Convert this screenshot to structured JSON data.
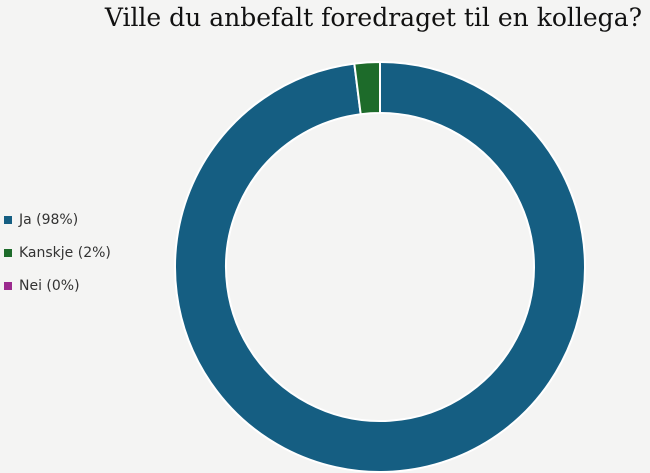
{
  "chart_data": {
    "type": "donut",
    "title": "Ville du anbefalt foredraget til en kollega?",
    "categories": [
      "Ja (98%)",
      "Kanskje (2%)",
      "Nei (0%)"
    ],
    "values": [
      98,
      2,
      0
    ],
    "colors": [
      "#155e82",
      "#1d6b2a",
      "#9b2a8e"
    ],
    "legend": "left"
  }
}
